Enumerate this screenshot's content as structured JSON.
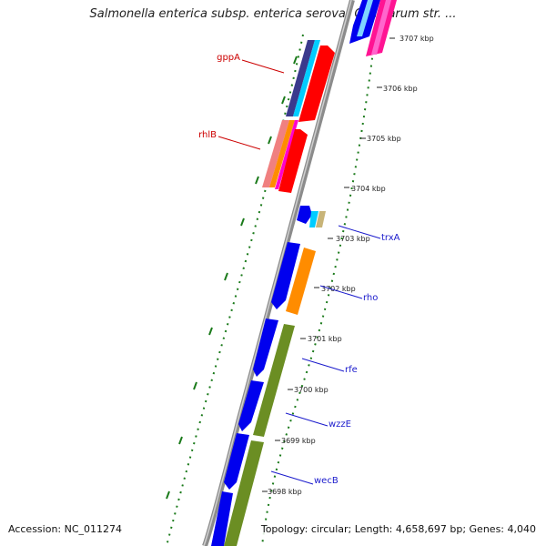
{
  "title": "Salmonella enterica subsp. enterica serovar Gallinarum str. ...",
  "footer": {
    "accession": "Accession: NC_011274",
    "topology": "Topology: circular; Length: 4,658,697 bp; Genes: 4,040"
  },
  "ticks": [
    {
      "label": "3707 kbp"
    },
    {
      "label": "3706 kbp"
    },
    {
      "label": "3705 kbp"
    },
    {
      "label": "3704 kbp"
    },
    {
      "label": "3703 kbp"
    },
    {
      "label": "3702 kbp"
    },
    {
      "label": "3701 kbp"
    },
    {
      "label": "3700 kbp"
    },
    {
      "label": "3699 kbp"
    },
    {
      "label": "3698 kbp"
    }
  ],
  "gene_labels": [
    {
      "name": "gppA",
      "strand": "reverse",
      "color": "#cc0000"
    },
    {
      "name": "rhlB",
      "strand": "reverse",
      "color": "#cc0000"
    },
    {
      "name": "trxA",
      "strand": "forward",
      "color": "#1a1acc"
    },
    {
      "name": "rho",
      "strand": "forward",
      "color": "#1a1acc"
    },
    {
      "name": "rfe",
      "strand": "forward",
      "color": "#1a1acc"
    },
    {
      "name": "wzzE",
      "strand": "forward",
      "color": "#1a1acc"
    },
    {
      "name": "wecB",
      "strand": "forward",
      "color": "#1a1acc"
    }
  ],
  "colors": {
    "backbone": "#8c8c8c",
    "forward_gene": "#0000ee",
    "reverse_gene": "#ff0000",
    "tick": "#1a7a1a",
    "cog_green": "#6b8e23",
    "cog_orange": "#ff8c00",
    "cog_cyan": "#00ccff",
    "cog_navy": "#3a3a8c",
    "cog_pink": "#ff1493",
    "cog_salmon": "#f08080",
    "cog_tan": "#c8b478",
    "cog_magenta": "#ff00cc"
  }
}
